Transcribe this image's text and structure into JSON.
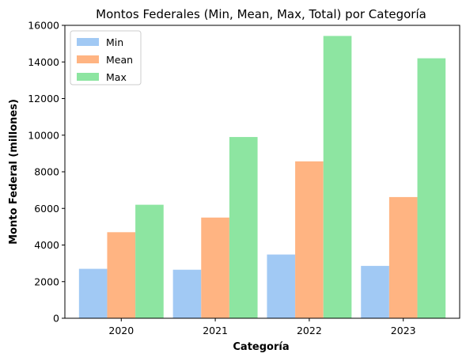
{
  "chart_data": {
    "type": "bar",
    "title": "Montos Federales (Min, Mean, Max, Total) por Categoría",
    "xlabel": "Categoría",
    "ylabel": "Monto Federal (millones)",
    "categories": [
      "2020",
      "2021",
      "2022",
      "2023"
    ],
    "series": [
      {
        "name": "Min",
        "color": "#a1c9f4",
        "values": [
          2700,
          2650,
          3480,
          2860
        ]
      },
      {
        "name": "Mean",
        "color": "#ffb482",
        "values": [
          4700,
          5500,
          8570,
          6620
        ]
      },
      {
        "name": "Max",
        "color": "#8de5a1",
        "values": [
          6200,
          9900,
          15420,
          14200
        ]
      }
    ],
    "ylim": [
      0,
      16000
    ],
    "yticks": [
      0,
      2000,
      4000,
      6000,
      8000,
      10000,
      12000,
      14000,
      16000
    ],
    "grid": false,
    "legend_position": "top-left"
  }
}
